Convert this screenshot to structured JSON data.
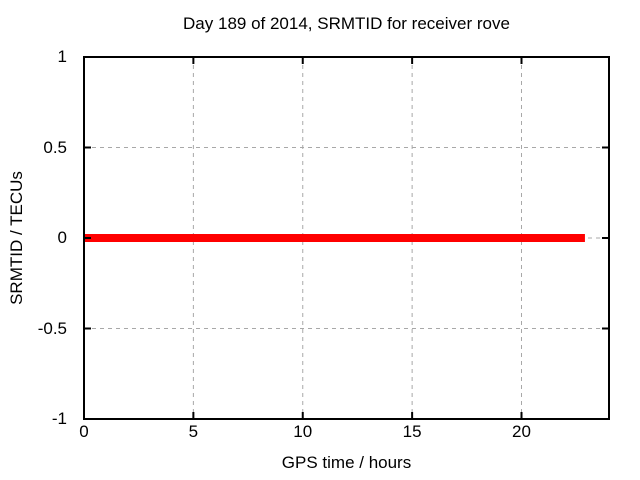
{
  "chart_data": {
    "type": "line",
    "title": "Day 189 of 2014, SRMTID for receiver rove",
    "xlabel": "GPS time / hours",
    "ylabel": "SRMTID / TECUs",
    "xlim": [
      0,
      24
    ],
    "ylim": [
      -1,
      1
    ],
    "xticks": [
      0,
      5,
      10,
      15,
      20
    ],
    "xtick_labels": [
      "0",
      "5",
      "10",
      "15",
      "20"
    ],
    "yticks": [
      1,
      0.5,
      0,
      -0.5,
      -1
    ],
    "ytick_labels": [
      "1",
      "0.5",
      "0",
      "-0.5",
      "-1"
    ],
    "grid": true,
    "legend": "none",
    "series": [
      {
        "name": "SRMTID",
        "x": [
          0,
          22.9
        ],
        "y": [
          0,
          0
        ],
        "color": "#ff0000",
        "linewidth": 8
      }
    ]
  },
  "colors": {
    "background": "#ffffff",
    "border": "#000000",
    "grid": "#a8a8a8",
    "text": "#000000",
    "line": "#ff0000"
  }
}
